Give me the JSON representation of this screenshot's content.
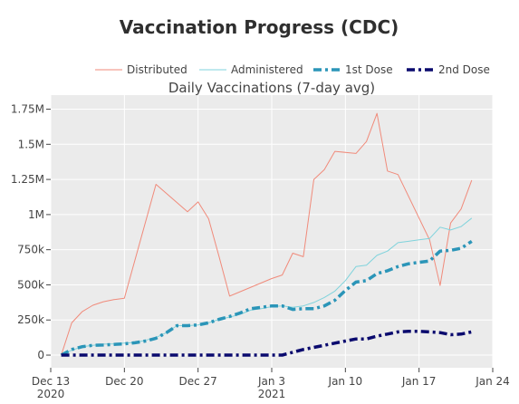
{
  "chart_data": {
    "type": "line",
    "title": "Vaccination Progress (CDC)",
    "subtitle": "Daily Vaccinations (7-day avg)",
    "xlabel": "",
    "ylabel": "",
    "xlim": [
      "2020-12-13",
      "2021-01-24"
    ],
    "ylim": [
      -90000,
      1850000
    ],
    "grid": true,
    "legend": "top",
    "x_ticks": [
      {
        "date": "2020-12-13",
        "label": "Dec 13",
        "sub": "2020"
      },
      {
        "date": "2020-12-20",
        "label": "Dec 20",
        "sub": ""
      },
      {
        "date": "2020-12-27",
        "label": "Dec 27",
        "sub": ""
      },
      {
        "date": "2021-01-03",
        "label": "Jan 3",
        "sub": "2021"
      },
      {
        "date": "2021-01-10",
        "label": "Jan 10",
        "sub": ""
      },
      {
        "date": "2021-01-17",
        "label": "Jan 17",
        "sub": ""
      },
      {
        "date": "2021-01-24",
        "label": "Jan 24",
        "sub": ""
      }
    ],
    "y_ticks": [
      {
        "value": 0,
        "label": "0"
      },
      {
        "value": 250000,
        "label": "250k"
      },
      {
        "value": 500000,
        "label": "500k"
      },
      {
        "value": 750000,
        "label": "750k"
      },
      {
        "value": 1000000,
        "label": "1M"
      },
      {
        "value": 1250000,
        "label": "1.25M"
      },
      {
        "value": 1500000,
        "label": "1.5M"
      },
      {
        "value": 1750000,
        "label": "1.75M"
      }
    ],
    "series": [
      {
        "name": "Distributed",
        "color": "#f08a7a",
        "style": "solid",
        "points": [
          [
            "2020-12-14",
            0
          ],
          [
            "2020-12-15",
            230000
          ],
          [
            "2020-12-16",
            310000
          ],
          [
            "2020-12-17",
            355000
          ],
          [
            "2020-12-18",
            380000
          ],
          [
            "2020-12-19",
            395000
          ],
          [
            "2020-12-20",
            405000
          ],
          [
            "2020-12-23",
            1215000
          ],
          [
            "2020-12-26",
            1020000
          ],
          [
            "2020-12-27",
            1090000
          ],
          [
            "2020-12-28",
            970000
          ],
          [
            "2020-12-29",
            700000
          ],
          [
            "2020-12-30",
            420000
          ],
          [
            "2021-01-03",
            545000
          ],
          [
            "2021-01-04",
            570000
          ],
          [
            "2021-01-05",
            725000
          ],
          [
            "2021-01-06",
            700000
          ],
          [
            "2021-01-07",
            1250000
          ],
          [
            "2021-01-08",
            1320000
          ],
          [
            "2021-01-09",
            1450000
          ],
          [
            "2021-01-11",
            1435000
          ],
          [
            "2021-01-12",
            1520000
          ],
          [
            "2021-01-13",
            1720000
          ],
          [
            "2021-01-14",
            1310000
          ],
          [
            "2021-01-15",
            1285000
          ],
          [
            "2021-01-18",
            820000
          ],
          [
            "2021-01-19",
            495000
          ],
          [
            "2021-01-20",
            940000
          ],
          [
            "2021-01-21",
            1040000
          ],
          [
            "2021-01-22",
            1245000
          ]
        ]
      },
      {
        "name": "Administered",
        "color": "#7fd3dc",
        "style": "solid",
        "points": [
          [
            "2020-12-14",
            0
          ],
          [
            "2020-12-15",
            35000
          ],
          [
            "2020-12-16",
            60000
          ],
          [
            "2020-12-17",
            70000
          ],
          [
            "2020-12-18",
            78000
          ],
          [
            "2020-12-19",
            80000
          ],
          [
            "2020-12-20",
            85000
          ],
          [
            "2020-12-21",
            90000
          ],
          [
            "2020-12-22",
            105000
          ],
          [
            "2020-12-23",
            125000
          ],
          [
            "2020-12-24",
            160000
          ],
          [
            "2020-12-25",
            210000
          ],
          [
            "2020-12-26",
            210000
          ],
          [
            "2020-12-27",
            215000
          ],
          [
            "2020-12-28",
            230000
          ],
          [
            "2020-12-29",
            255000
          ],
          [
            "2020-12-30",
            270000
          ],
          [
            "2020-12-31",
            290000
          ],
          [
            "2021-01-01",
            320000
          ],
          [
            "2021-01-02",
            330000
          ],
          [
            "2021-01-03",
            345000
          ],
          [
            "2021-01-04",
            350000
          ],
          [
            "2021-01-05",
            340000
          ],
          [
            "2021-01-06",
            350000
          ],
          [
            "2021-01-07",
            375000
          ],
          [
            "2021-01-08",
            410000
          ],
          [
            "2021-01-09",
            455000
          ],
          [
            "2021-01-10",
            530000
          ],
          [
            "2021-01-11",
            630000
          ],
          [
            "2021-01-12",
            640000
          ],
          [
            "2021-01-13",
            710000
          ],
          [
            "2021-01-14",
            740000
          ],
          [
            "2021-01-15",
            800000
          ],
          [
            "2021-01-16",
            810000
          ],
          [
            "2021-01-17",
            820000
          ],
          [
            "2021-01-18",
            830000
          ],
          [
            "2021-01-19",
            910000
          ],
          [
            "2021-01-20",
            890000
          ],
          [
            "2021-01-21",
            915000
          ],
          [
            "2021-01-22",
            975000
          ]
        ]
      },
      {
        "name": "1st Dose",
        "color": "#2b95b8",
        "style": "dashdot",
        "points": [
          [
            "2020-12-14",
            0
          ],
          [
            "2020-12-15",
            40000
          ],
          [
            "2020-12-16",
            60000
          ],
          [
            "2020-12-17",
            70000
          ],
          [
            "2020-12-18",
            72000
          ],
          [
            "2020-12-19",
            76000
          ],
          [
            "2020-12-20",
            80000
          ],
          [
            "2020-12-21",
            88000
          ],
          [
            "2020-12-22",
            100000
          ],
          [
            "2020-12-23",
            120000
          ],
          [
            "2020-12-24",
            160000
          ],
          [
            "2020-12-25",
            210000
          ],
          [
            "2020-12-26",
            210000
          ],
          [
            "2020-12-27",
            215000
          ],
          [
            "2020-12-28",
            230000
          ],
          [
            "2020-12-29",
            255000
          ],
          [
            "2020-12-30",
            275000
          ],
          [
            "2020-12-31",
            300000
          ],
          [
            "2021-01-01",
            330000
          ],
          [
            "2021-01-02",
            340000
          ],
          [
            "2021-01-03",
            350000
          ],
          [
            "2021-01-04",
            350000
          ],
          [
            "2021-01-05",
            325000
          ],
          [
            "2021-01-06",
            330000
          ],
          [
            "2021-01-07",
            330000
          ],
          [
            "2021-01-08",
            350000
          ],
          [
            "2021-01-09",
            390000
          ],
          [
            "2021-01-10",
            460000
          ],
          [
            "2021-01-11",
            520000
          ],
          [
            "2021-01-12",
            530000
          ],
          [
            "2021-01-13",
            580000
          ],
          [
            "2021-01-14",
            600000
          ],
          [
            "2021-01-15",
            630000
          ],
          [
            "2021-01-16",
            650000
          ],
          [
            "2021-01-17",
            660000
          ],
          [
            "2021-01-18",
            670000
          ],
          [
            "2021-01-19",
            740000
          ],
          [
            "2021-01-20",
            745000
          ],
          [
            "2021-01-21",
            760000
          ],
          [
            "2021-01-22",
            810000
          ]
        ]
      },
      {
        "name": "2nd Dose",
        "color": "#0a0a6e",
        "style": "dashdot",
        "points": [
          [
            "2020-12-14",
            0
          ],
          [
            "2020-12-20",
            0
          ],
          [
            "2020-12-27",
            0
          ],
          [
            "2021-01-03",
            0
          ],
          [
            "2021-01-04",
            0
          ],
          [
            "2021-01-05",
            20000
          ],
          [
            "2021-01-06",
            40000
          ],
          [
            "2021-01-07",
            55000
          ],
          [
            "2021-01-08",
            70000
          ],
          [
            "2021-01-09",
            85000
          ],
          [
            "2021-01-10",
            100000
          ],
          [
            "2021-01-11",
            115000
          ],
          [
            "2021-01-12",
            115000
          ],
          [
            "2021-01-13",
            135000
          ],
          [
            "2021-01-14",
            150000
          ],
          [
            "2021-01-15",
            165000
          ],
          [
            "2021-01-16",
            170000
          ],
          [
            "2021-01-17",
            170000
          ],
          [
            "2021-01-18",
            165000
          ],
          [
            "2021-01-19",
            160000
          ],
          [
            "2021-01-20",
            145000
          ],
          [
            "2021-01-21",
            150000
          ],
          [
            "2021-01-22",
            165000
          ]
        ]
      }
    ]
  }
}
